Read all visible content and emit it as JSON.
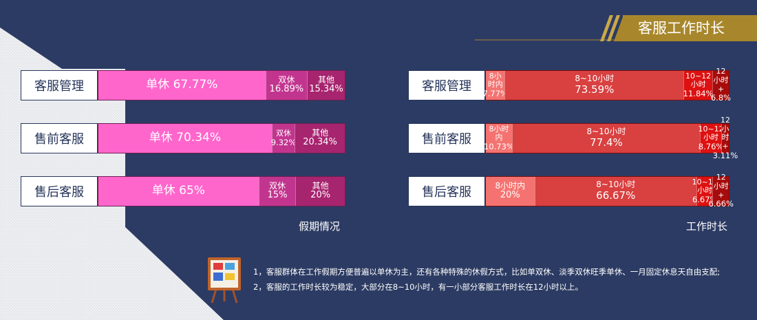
{
  "header": {
    "title": "客服工作时长"
  },
  "charts_captions": {
    "left": "假期情况",
    "right": "工作时长"
  },
  "chart_data": [
    {
      "type": "bar",
      "orientation": "horizontal-stacked-100",
      "title": "假期情况",
      "categories": [
        "客服管理",
        "售前客服",
        "售后客服"
      ],
      "series": [
        {
          "name": "单休",
          "values": [
            67.77,
            70.34,
            65
          ],
          "labels": [
            "67.77%",
            "70.34%",
            "65%"
          ],
          "color": "#ff66cc"
        },
        {
          "name": "双休",
          "values": [
            16.89,
            9.32,
            15
          ],
          "labels": [
            "16.89%",
            "9.32%",
            "15%"
          ],
          "color": "#c2358f"
        },
        {
          "name": "其他",
          "values": [
            15.34,
            20.34,
            20
          ],
          "labels": [
            "15.34%",
            "20.34%",
            "20%"
          ],
          "color": "#a7246f"
        }
      ]
    },
    {
      "type": "bar",
      "orientation": "horizontal-stacked-100",
      "title": "工作时长",
      "categories": [
        "客服管理",
        "售前客服",
        "售后客服"
      ],
      "series": [
        {
          "name": "8小时内",
          "values": [
            7.77,
            10.73,
            20
          ],
          "labels": [
            "7.77%",
            "10.73%",
            "20%"
          ],
          "color": "#f47370"
        },
        {
          "name": "8~10小时",
          "values": [
            73.59,
            77.4,
            66.67
          ],
          "labels": [
            "73.59%",
            "77.4%",
            "66.67%"
          ],
          "color": "#d94040"
        },
        {
          "name": "10~12小时",
          "values": [
            11.84,
            8.76,
            6.67
          ],
          "labels": [
            "11.84%",
            "8.76%",
            "6.67%"
          ],
          "color": "#dd1111"
        },
        {
          "name": "12小时+",
          "values": [
            6.8,
            3.11,
            6.66
          ],
          "labels": [
            "6.8%",
            "3.11%",
            "6.66%"
          ],
          "color": "#a60c0c"
        }
      ]
    }
  ],
  "notes": [
    "1，客服群体在工作假期方便普遍以单休为主，还有各种特殊的休假方式，比如单双休、淡季双休旺季单休、一月固定休息天自由支配;",
    "2，客服的工作时长较为稳定，大部分在8~10小时，有一小部分客服工作时长在12小时以上。"
  ],
  "colors": {
    "background": "#2c3b63",
    "badge": "#a8872c",
    "panel": "#e9ebef"
  }
}
